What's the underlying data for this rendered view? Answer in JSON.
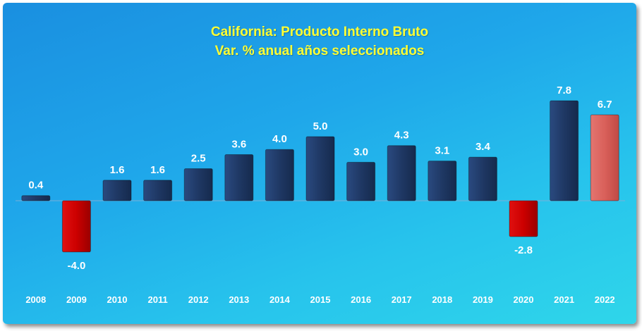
{
  "chart_data": {
    "type": "bar",
    "title": "California: Producto Interno Bruto",
    "subtitle": "Var. % anual años seleccionados",
    "categories": [
      "2008",
      "2009",
      "2010",
      "2011",
      "2012",
      "2013",
      "2014",
      "2015",
      "2016",
      "2017",
      "2018",
      "2019",
      "2020",
      "2021",
      "2022"
    ],
    "values": [
      0.4,
      -4.0,
      1.6,
      1.6,
      2.5,
      3.6,
      4.0,
      5.0,
      3.0,
      4.3,
      3.1,
      3.4,
      -2.8,
      7.8,
      6.7
    ],
    "value_labels": [
      "0.4",
      "-4.0",
      "1.6",
      "1.6",
      "2.5",
      "3.6",
      "4.0",
      "5.0",
      "3.0",
      "4.3",
      "3.1",
      "3.4",
      "-2.8",
      "7.8",
      "6.7"
    ],
    "ylim": [
      -4.0,
      7.8
    ],
    "grid": false,
    "legend": "none",
    "colors": {
      "positive": "#1f3864",
      "negative": "#cc0000",
      "highlight": "#d9605a",
      "title": "#ffff33",
      "labels": "#ffffff"
    },
    "highlight_category": "2022"
  }
}
